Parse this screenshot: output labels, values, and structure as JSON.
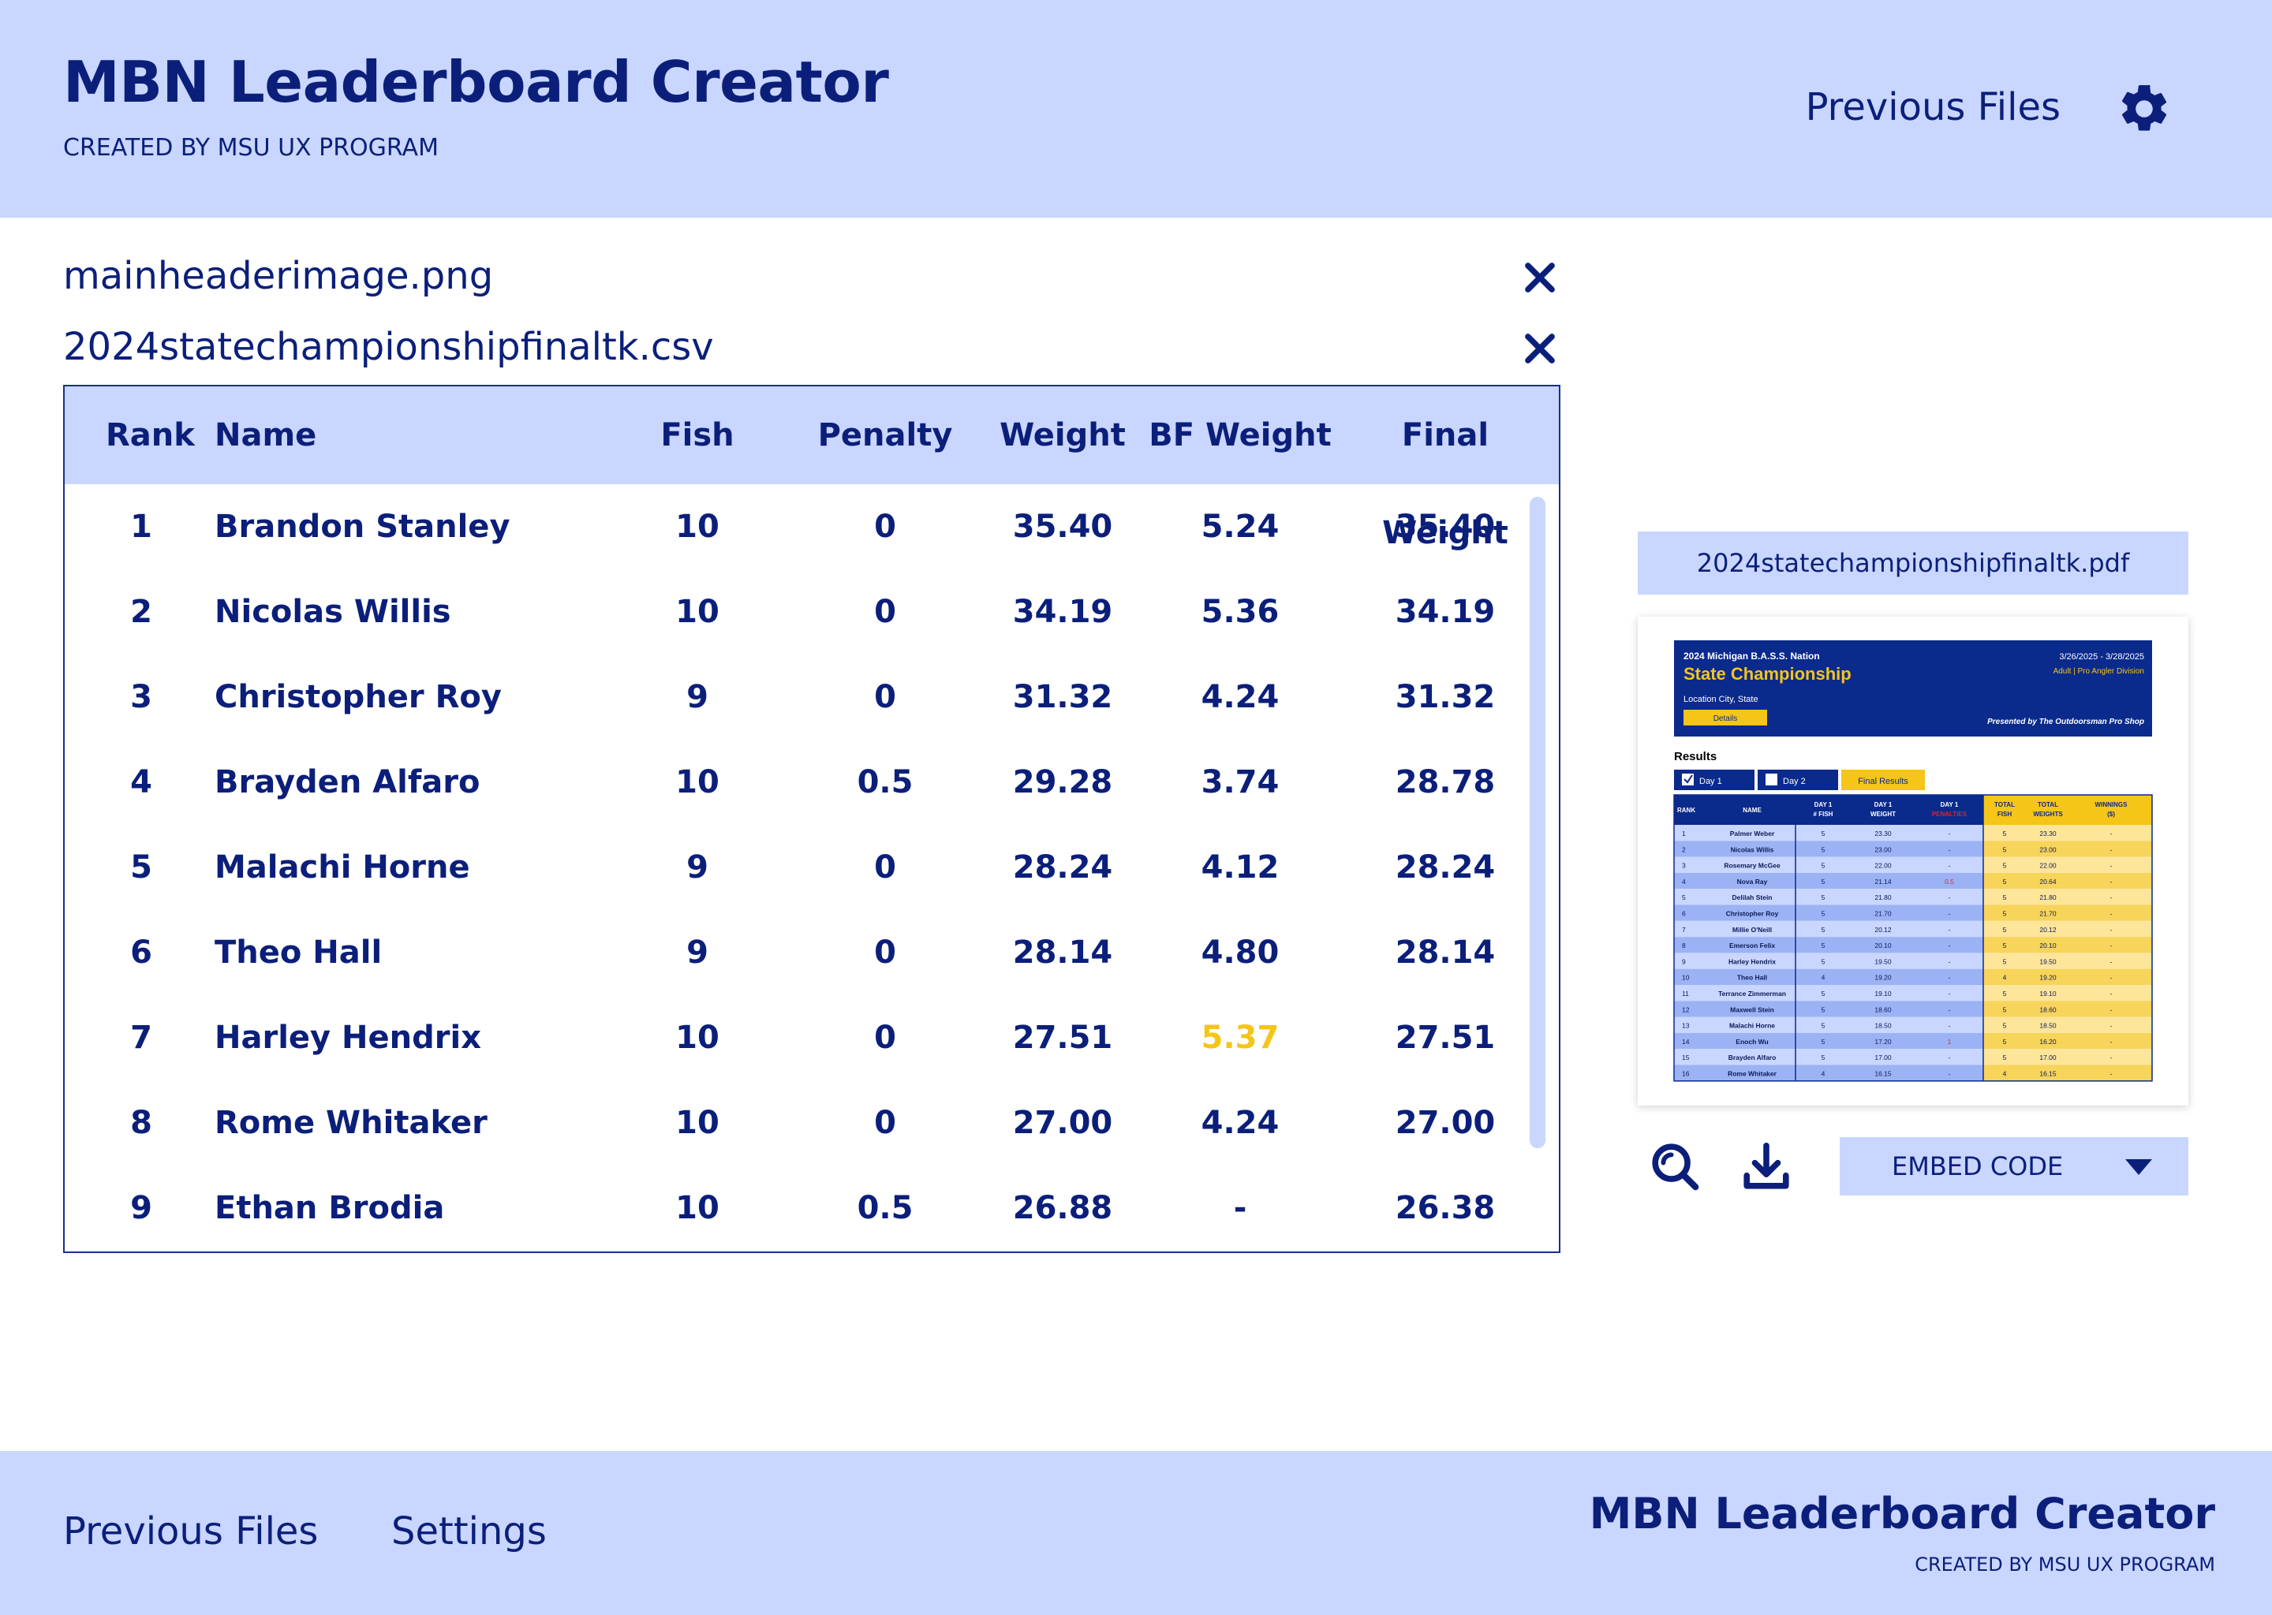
{
  "header": {
    "title": "MBN Leaderboard Creator",
    "subtitle": "CREATED BY MSU UX PROGRAM",
    "previous_files": "Previous Files",
    "settings_icon": "gear-icon"
  },
  "files": [
    {
      "name": "mainheaderimage.png"
    },
    {
      "name": "2024statechampionshipfinaltk.csv"
    }
  ],
  "table": {
    "columns": [
      "Rank",
      "Name",
      "Fish",
      "Penalty",
      "Weight",
      "BF Weight",
      "Final Weight"
    ],
    "rows": [
      {
        "rank": "1",
        "name": "Brandon Stanley",
        "fish": "10",
        "penalty": "0",
        "weight": "35.40",
        "bf": "5.24",
        "final": "35.40",
        "bf_highlight": false
      },
      {
        "rank": "2",
        "name": "Nicolas Willis",
        "fish": "10",
        "penalty": "0",
        "weight": "34.19",
        "bf": "5.36",
        "final": "34.19",
        "bf_highlight": false
      },
      {
        "rank": "3",
        "name": "Christopher Roy",
        "fish": "9",
        "penalty": "0",
        "weight": "31.32",
        "bf": "4.24",
        "final": "31.32",
        "bf_highlight": false
      },
      {
        "rank": "4",
        "name": "Brayden Alfaro",
        "fish": "10",
        "penalty": "0.5",
        "weight": "29.28",
        "bf": "3.74",
        "final": "28.78",
        "bf_highlight": false
      },
      {
        "rank": "5",
        "name": "Malachi Horne",
        "fish": "9",
        "penalty": "0",
        "weight": "28.24",
        "bf": "4.12",
        "final": "28.24",
        "bf_highlight": false
      },
      {
        "rank": "6",
        "name": "Theo Hall",
        "fish": "9",
        "penalty": "0",
        "weight": "28.14",
        "bf": "4.80",
        "final": "28.14",
        "bf_highlight": false
      },
      {
        "rank": "7",
        "name": "Harley Hendrix",
        "fish": "10",
        "penalty": "0",
        "weight": "27.51",
        "bf": "5.37",
        "final": "27.51",
        "bf_highlight": true
      },
      {
        "rank": "8",
        "name": "Rome Whitaker",
        "fish": "10",
        "penalty": "0",
        "weight": "27.00",
        "bf": "4.24",
        "final": "27.00",
        "bf_highlight": false
      },
      {
        "rank": "9",
        "name": "Ethan Brodia",
        "fish": "10",
        "penalty": "0.5",
        "weight": "26.88",
        "bf": "-",
        "final": "26.38",
        "bf_highlight": false
      }
    ]
  },
  "preview": {
    "pdf_name": "2024statechampionshipfinaltk.pdf",
    "banner": {
      "org": "2024 Michigan B.A.S.S. Nation",
      "title": "State Championship",
      "dates": "3/26/2025 - 3/28/2025",
      "division": "Adult | Pro Angler Division",
      "location": "Location City, State",
      "details": "Details",
      "presented": "Presented by The Outdoorsman Pro Shop"
    },
    "results_label": "Results",
    "tabs": [
      "Day 1",
      "Day 2",
      "Final Results"
    ],
    "columns": [
      "RANK",
      "NAME",
      "DAY 1 # FISH",
      "DAY 1 WEIGHT",
      "DAY 1 PENALTIES",
      "TOTAL FISH",
      "TOTAL WEIGHTS",
      "WINNINGS ($)"
    ],
    "rows": [
      [
        "1",
        "Palmer Weber",
        "5",
        "23.30",
        "-",
        "5",
        "23.30",
        "-"
      ],
      [
        "2",
        "Nicolas Willis",
        "5",
        "23.00",
        "-",
        "5",
        "23.00",
        "-"
      ],
      [
        "3",
        "Rosemary McGee",
        "5",
        "22.00",
        "-",
        "5",
        "22.00",
        "-"
      ],
      [
        "4",
        "Nova Ray",
        "5",
        "21.14",
        "0.5",
        "5",
        "20.64",
        "-"
      ],
      [
        "5",
        "Delilah Stein",
        "5",
        "21.80",
        "-",
        "5",
        "21.80",
        "-"
      ],
      [
        "6",
        "Christopher Roy",
        "5",
        "21.70",
        "-",
        "5",
        "21.70",
        "-"
      ],
      [
        "7",
        "Millie O'Neill",
        "5",
        "20.12",
        "-",
        "5",
        "20.12",
        "-"
      ],
      [
        "8",
        "Emerson Felix",
        "5",
        "20.10",
        "-",
        "5",
        "20.10",
        "-"
      ],
      [
        "9",
        "Harley Hendrix",
        "5",
        "19.50",
        "-",
        "5",
        "19.50",
        "-"
      ],
      [
        "10",
        "Theo Hall",
        "4",
        "19.20",
        "-",
        "4",
        "19.20",
        "-"
      ],
      [
        "11",
        "Terrance Zimmerman",
        "5",
        "19.10",
        "-",
        "5",
        "19.10",
        "-"
      ],
      [
        "12",
        "Maxwell Stein",
        "5",
        "18.60",
        "-",
        "5",
        "18.60",
        "-"
      ],
      [
        "13",
        "Malachi Horne",
        "5",
        "18.50",
        "-",
        "5",
        "18.50",
        "-"
      ],
      [
        "14",
        "Enoch Wu",
        "5",
        "17.20",
        "1",
        "5",
        "16.20",
        "-"
      ],
      [
        "15",
        "Brayden Alfaro",
        "5",
        "17.00",
        "-",
        "5",
        "17.00",
        "-"
      ],
      [
        "16",
        "Rome Whitaker",
        "4",
        "16.15",
        "-",
        "4",
        "16.15",
        "-"
      ]
    ],
    "zoom_icon": "zoom-icon",
    "download_icon": "download-icon",
    "embed_label": "EMBED CODE"
  },
  "footer": {
    "links": [
      "Previous Files",
      "Settings"
    ],
    "title": "MBN Leaderboard Creator",
    "subtitle": "CREATED BY MSU UX PROGRAM"
  },
  "colors": {
    "primary": "#0b1f7a",
    "light": "#c9d6ff",
    "highlight": "#f5c518",
    "penalty_red": "#e0242a"
  }
}
